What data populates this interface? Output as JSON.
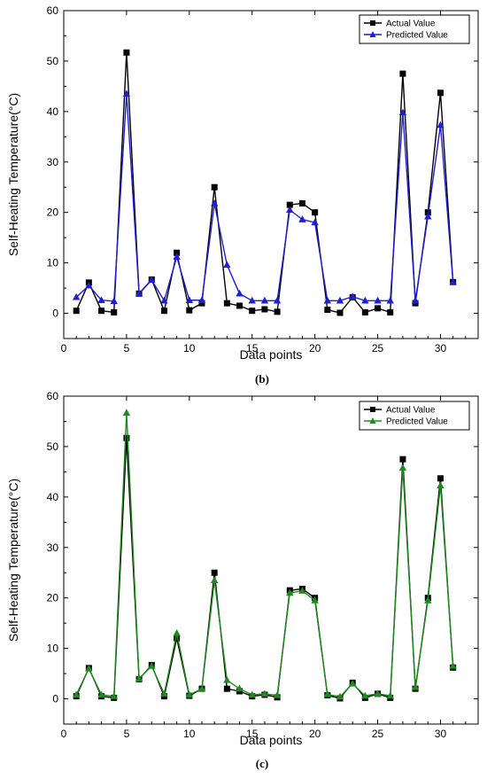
{
  "chart_data": [
    {
      "type": "line",
      "panel_label": "(b)",
      "xlabel": "Data points",
      "ylabel": "Self-Heating Temperature(°C)",
      "xlim": [
        0,
        33
      ],
      "ylim": [
        -5,
        60
      ],
      "xticks": [
        0,
        5,
        10,
        15,
        20,
        25,
        30
      ],
      "yticks": [
        0,
        10,
        20,
        30,
        40,
        50,
        60
      ],
      "legend_position": "top-right",
      "x": [
        1,
        2,
        3,
        4,
        5,
        6,
        7,
        8,
        9,
        10,
        11,
        12,
        13,
        14,
        15,
        16,
        17,
        18,
        19,
        20,
        21,
        22,
        23,
        24,
        25,
        26,
        27,
        28,
        29,
        30,
        31
      ],
      "series": [
        {
          "name": "Actual Value",
          "color": "#000000",
          "marker": "square",
          "values": [
            0.5,
            6.1,
            0.5,
            0.2,
            51.7,
            3.9,
            6.7,
            0.5,
            12.0,
            0.6,
            2.0,
            25.0,
            2.0,
            1.5,
            0.5,
            0.8,
            0.3,
            21.5,
            21.8,
            20.0,
            0.7,
            0.1,
            3.2,
            0.2,
            1.0,
            0.2,
            47.5,
            2.0,
            20.0,
            43.7,
            6.2
          ]
        },
        {
          "name": "Predicted Value",
          "color": "#1f1fd0",
          "marker": "triangle",
          "values": [
            3.2,
            5.5,
            2.6,
            2.4,
            43.5,
            3.9,
            6.6,
            2.5,
            11.2,
            2.6,
            2.6,
            21.8,
            9.6,
            3.9,
            2.5,
            2.5,
            2.5,
            20.5,
            18.6,
            18.0,
            2.5,
            2.5,
            3.3,
            2.5,
            2.5,
            2.5,
            39.8,
            2.5,
            19.2,
            37.3,
            6.2
          ]
        }
      ]
    },
    {
      "type": "line",
      "panel_label": "(c)",
      "xlabel": "Data points",
      "ylabel": "Self-Heating Temperature(°C)",
      "xlim": [
        0,
        33
      ],
      "ylim": [
        -5,
        60
      ],
      "xticks": [
        0,
        5,
        10,
        15,
        20,
        25,
        30
      ],
      "yticks": [
        0,
        10,
        20,
        30,
        40,
        50,
        60
      ],
      "legend_position": "top-right",
      "x": [
        1,
        2,
        3,
        4,
        5,
        6,
        7,
        8,
        9,
        10,
        11,
        12,
        13,
        14,
        15,
        16,
        17,
        18,
        19,
        20,
        21,
        22,
        23,
        24,
        25,
        26,
        27,
        28,
        29,
        30,
        31
      ],
      "series": [
        {
          "name": "Actual Value",
          "color": "#000000",
          "marker": "square",
          "values": [
            0.5,
            6.1,
            0.5,
            0.2,
            51.7,
            3.9,
            6.7,
            0.5,
            12.0,
            0.6,
            2.0,
            25.0,
            2.0,
            1.5,
            0.5,
            0.8,
            0.3,
            21.5,
            21.8,
            20.0,
            0.7,
            0.1,
            3.2,
            0.2,
            1.0,
            0.2,
            47.5,
            2.0,
            20.0,
            43.7,
            6.2
          ]
        },
        {
          "name": "Predicted Value",
          "color": "#1f8a1f",
          "marker": "triangle",
          "values": [
            0.8,
            6.0,
            0.8,
            0.5,
            56.7,
            4.0,
            6.5,
            1.0,
            13.0,
            0.8,
            2.0,
            23.5,
            3.7,
            2.0,
            0.8,
            1.0,
            0.7,
            21.0,
            21.4,
            19.5,
            0.9,
            0.4,
            3.0,
            0.6,
            1.0,
            0.6,
            45.8,
            2.3,
            19.5,
            42.3,
            6.5
          ]
        }
      ]
    }
  ]
}
